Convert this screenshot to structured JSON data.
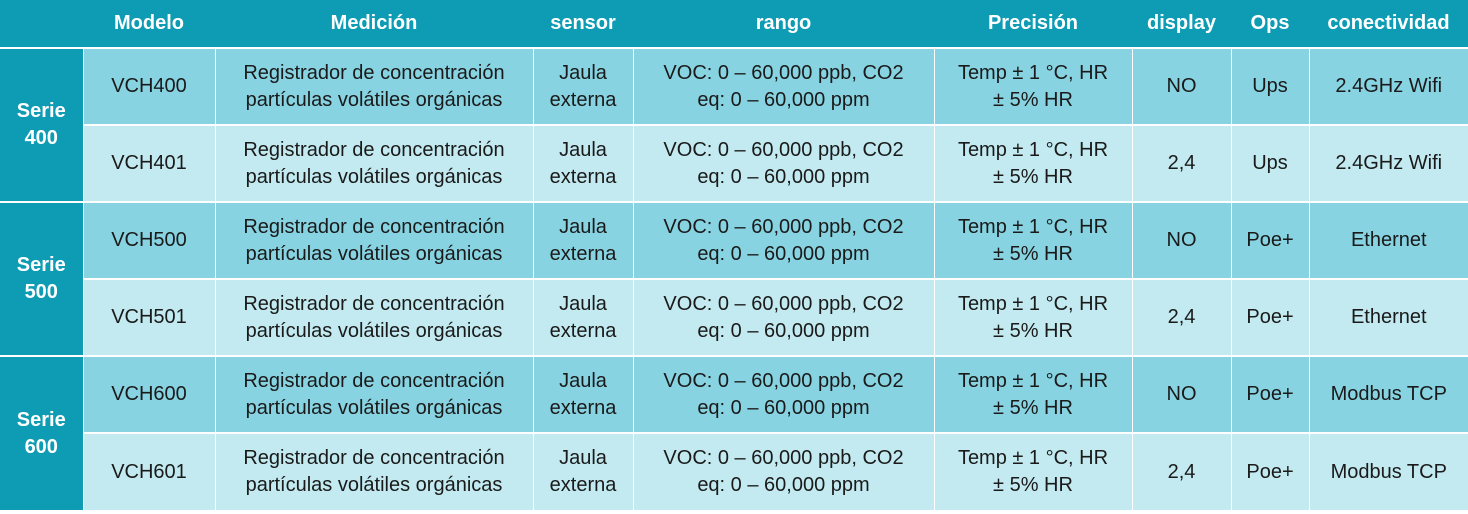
{
  "header": {
    "columns": [
      "",
      "Modelo",
      "Medición",
      "sensor",
      "rango",
      "Precisión",
      "display",
      "Ops",
      "conectividad"
    ]
  },
  "groups": [
    {
      "series_label": [
        "Serie",
        "400"
      ],
      "rows": [
        {
          "modelo": "VCH400",
          "medicion": [
            "Registrador de concentración",
            "partículas volátiles orgánicas"
          ],
          "sensor": [
            "Jaula",
            "externa"
          ],
          "rango": [
            "VOC: 0 – 60,000 ppb, CO2",
            "eq: 0 – 60,000 ppm"
          ],
          "precision": [
            "Temp ± 1 °C,  HR",
            "± 5% HR"
          ],
          "display": "NO",
          "ops": "Ups",
          "conectividad": "2.4GHz Wifi"
        },
        {
          "modelo": "VCH401",
          "medicion": [
            "Registrador de concentración",
            "partículas volátiles orgánicas"
          ],
          "sensor": [
            "Jaula",
            "externa"
          ],
          "rango": [
            "VOC: 0 – 60,000 ppb, CO2",
            "eq: 0 – 60,000 ppm"
          ],
          "precision": [
            "Temp ± 1 °C,  HR",
            "± 5% HR"
          ],
          "display": "2,4",
          "ops": "Ups",
          "conectividad": "2.4GHz Wifi"
        }
      ]
    },
    {
      "series_label": [
        "Serie",
        "500"
      ],
      "rows": [
        {
          "modelo": "VCH500",
          "medicion": [
            "Registrador de concentración",
            "partículas volátiles orgánicas"
          ],
          "sensor": [
            "Jaula",
            "externa"
          ],
          "rango": [
            "VOC: 0 – 60,000 ppb, CO2",
            "eq: 0 – 60,000 ppm"
          ],
          "precision": [
            "Temp ± 1 °C,  HR",
            "± 5% HR"
          ],
          "display": "NO",
          "ops": "Poe+",
          "conectividad": "Ethernet"
        },
        {
          "modelo": "VCH501",
          "medicion": [
            "Registrador de concentración",
            "partículas volátiles orgánicas"
          ],
          "sensor": [
            "Jaula",
            "externa"
          ],
          "rango": [
            "VOC: 0 – 60,000 ppb, CO2",
            "eq: 0 – 60,000 ppm"
          ],
          "precision": [
            "Temp ± 1 °C,  HR",
            "± 5% HR"
          ],
          "display": "2,4",
          "ops": "Poe+",
          "conectividad": "Ethernet"
        }
      ]
    },
    {
      "series_label": [
        "Serie",
        "600"
      ],
      "rows": [
        {
          "modelo": "VCH600",
          "medicion": [
            "Registrador de concentración",
            "partículas volátiles orgánicas"
          ],
          "sensor": [
            "Jaula",
            "externa"
          ],
          "rango": [
            "VOC: 0 – 60,000 ppb, CO2",
            "eq: 0 – 60,000 ppm"
          ],
          "precision": [
            "Temp ± 1 °C,  HR",
            "± 5% HR"
          ],
          "display": "NO",
          "ops": "Poe+",
          "conectividad": "Modbus TCP"
        },
        {
          "modelo": "VCH601",
          "medicion": [
            "Registrador de concentración",
            "partículas volátiles orgánicas"
          ],
          "sensor": [
            "Jaula",
            "externa"
          ],
          "rango": [
            "VOC: 0 – 60,000 ppb, CO2",
            "eq: 0 – 60,000 ppm"
          ],
          "precision": [
            "Temp ± 1 °C,  HR",
            "± 5% HR"
          ],
          "display": "2,4",
          "ops": "Poe+",
          "conectividad": "Modbus TCP"
        }
      ]
    }
  ],
  "colors": {
    "header_bg": "#0d9cb4",
    "row_dark": "#87d3e1",
    "row_light": "#c2eaf0"
  }
}
